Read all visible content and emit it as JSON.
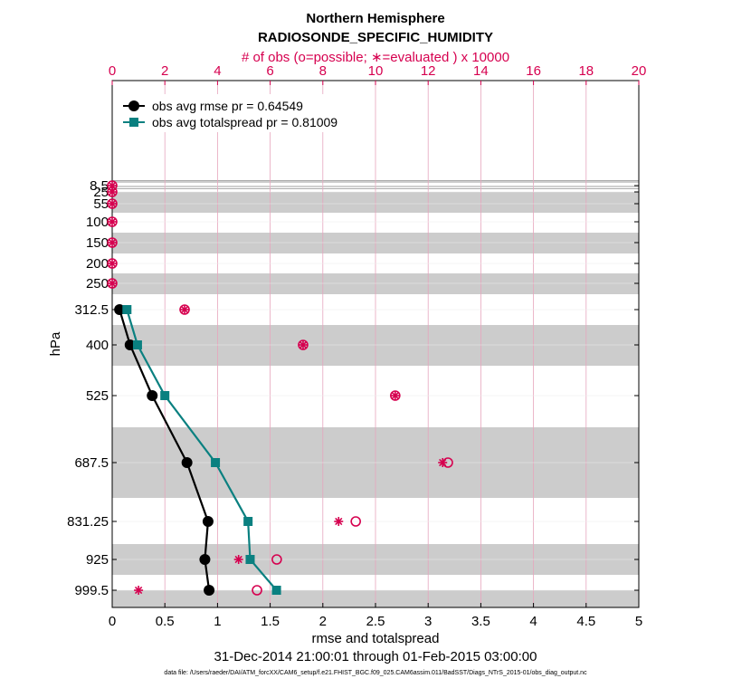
{
  "chart_data": {
    "type": "line",
    "title": "Northern Hemisphere",
    "subtitle": "RADIOSONDE_SPECIFIC_HUMIDITY",
    "top_axis_label": "# of obs (o=possible; ∗=evaluated ) x 10000",
    "xlabel": "rmse and totalspread",
    "ylabel": "hPa",
    "date_range": "31-Dec-2014 21:00:01 through 01-Feb-2015 03:00:00",
    "footer": "data file: /Users/raeder/DAI/ATM_forcXX/CAM6_setup/f.e21.FHIST_BGC.f09_025.CAM6assim.011/BadSST/Diags_NTrS_2015-01/obs_diag_output.nc",
    "xlim": [
      0,
      5
    ],
    "xticks": [
      "0",
      "0.5",
      "1",
      "1.5",
      "2",
      "2.5",
      "3",
      "3.5",
      "4",
      "4.5",
      "5"
    ],
    "top_xlim": [
      0,
      20
    ],
    "top_xticks": [
      "0",
      "2",
      "4",
      "6",
      "8",
      "10",
      "12",
      "14",
      "16",
      "18",
      "20"
    ],
    "levels": [
      "8.5",
      "25",
      "55",
      "100",
      "150",
      "200",
      "250",
      "312.5",
      "400",
      "525",
      "687.5",
      "831.25",
      "925",
      "999.5"
    ],
    "level_values": [
      8.5,
      25,
      55,
      100,
      150,
      200,
      250,
      312.5,
      400,
      525,
      687.5,
      831.25,
      925,
      999.5
    ],
    "band_edges": [
      [
        0,
        8.5
      ],
      [
        17,
        40
      ],
      [
        80,
        125
      ],
      [
        175,
        225
      ],
      [
        275,
        350
      ],
      [
        475,
        600
      ],
      [
        775,
        887.5
      ],
      [
        962.25,
        1000
      ]
    ],
    "band_fill_rows": [
      [
        0,
        0
      ],
      [
        20,
        45
      ],
      [
        85,
        125
      ],
      [
        168,
        225
      ],
      [
        275,
        356
      ],
      [
        435,
        600
      ],
      [
        775,
        887.5
      ],
      [
        962.25,
        1000
      ]
    ],
    "series": [
      {
        "name": "obs avg rmse",
        "legend": "obs avg rmse pr = 0.64549",
        "color": "#000000",
        "marker": "circle",
        "levels": [
          312.5,
          400,
          525,
          687.5,
          831.25,
          925,
          999.5
        ],
        "values": [
          0.07,
          0.17,
          0.38,
          0.71,
          0.91,
          0.88,
          0.92
        ]
      },
      {
        "name": "obs avg totalspread",
        "legend": "obs avg totalspread pr = 0.81009",
        "color": "#0a8080",
        "marker": "square",
        "levels": [
          312.5,
          400,
          525,
          687.5,
          831.25,
          925,
          999.5
        ],
        "values": [
          0.14,
          0.24,
          0.5,
          0.98,
          1.29,
          1.31,
          1.56
        ]
      }
    ],
    "obs_counts": {
      "units": "x 10000",
      "levels": [
        8.5,
        25,
        55,
        100,
        150,
        200,
        250,
        312.5,
        400,
        525,
        687.5,
        831.25,
        925,
        999.5
      ],
      "possible": [
        0.0,
        0.0,
        0.0,
        0.0,
        0.0,
        0.0,
        0.0,
        2.75,
        7.25,
        10.75,
        12.75,
        9.25,
        6.25,
        5.5
      ],
      "evaluated": [
        0.0,
        0.0,
        0.0,
        0.0,
        0.0,
        0.0,
        0.0,
        2.75,
        7.25,
        10.75,
        12.55,
        8.6,
        4.8,
        1.0
      ]
    }
  }
}
